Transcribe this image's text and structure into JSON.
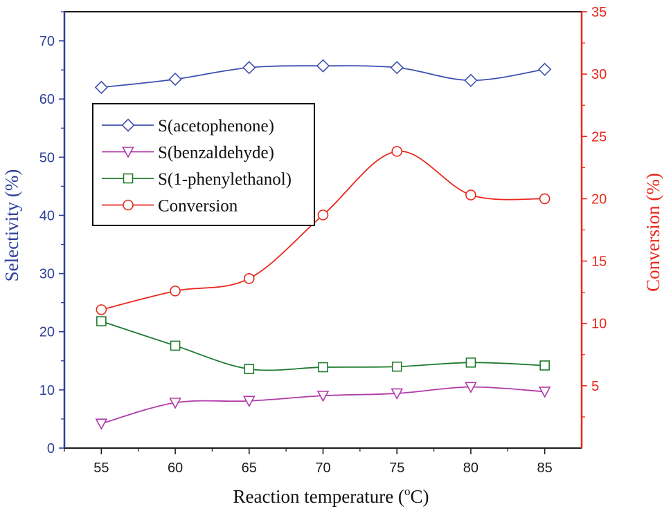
{
  "chart_data": {
    "type": "line",
    "x": [
      55,
      60,
      65,
      70,
      75,
      80,
      85
    ],
    "xlabel": "Reaction temperature (°C)",
    "xlabel_base": "Reaction temperature (",
    "xlabel_sup": "o",
    "xlabel_tail": "C)",
    "xlim": [
      52.5,
      87.5
    ],
    "xticks": [
      55,
      60,
      65,
      70,
      75,
      80,
      85
    ],
    "ylabel_left": "Selectivity (%)",
    "ylim_left": [
      0,
      75
    ],
    "yticks_left": [
      0,
      10,
      20,
      30,
      40,
      50,
      60,
      70
    ],
    "ylabel_right": "Conversion (%)",
    "ylim_right": [
      0,
      35
    ],
    "yticks_right": [
      5,
      10,
      15,
      20,
      25,
      30,
      35
    ],
    "legend_position": "upper-left",
    "series": [
      {
        "name": "S(acetophenone)",
        "axis": "left",
        "marker": "diamond",
        "color": "#3d4fb0",
        "values": [
          62.0,
          63.4,
          65.4,
          65.7,
          65.4,
          63.2,
          65.1
        ]
      },
      {
        "name": "S(benzaldehyde)",
        "axis": "left",
        "marker": "triangle-down",
        "color": "#b03aa8",
        "values": [
          4.2,
          7.8,
          8.1,
          9.0,
          9.4,
          10.5,
          9.7
        ]
      },
      {
        "name": "S(1-phenylethanol)",
        "axis": "left",
        "marker": "square",
        "color": "#1f7a2e",
        "values": [
          21.8,
          17.6,
          13.6,
          13.9,
          14.0,
          14.7,
          14.2
        ]
      },
      {
        "name": "Conversion",
        "axis": "right",
        "marker": "circle",
        "color": "#e8281c",
        "values": [
          11.1,
          12.6,
          13.6,
          18.7,
          23.8,
          20.3,
          20.0
        ]
      }
    ],
    "legend_labels": [
      "S(acetophenone)",
      "S(benzaldehyde)",
      "S(1-phenylethanol)",
      "Conversion"
    ]
  },
  "colors": {
    "left_axis": "#2e3f9a",
    "right_axis": "#e8281c",
    "frame": "#1a1a1a"
  }
}
